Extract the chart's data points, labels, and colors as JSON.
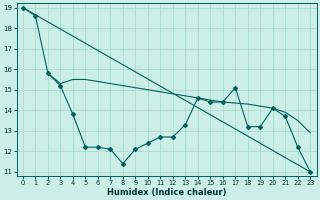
{
  "xlabel": "Humidex (Indice chaleur)",
  "background_color": "#cceee8",
  "grid_color": "#aaddcc",
  "line_color": "#006060",
  "xlim": [
    -0.5,
    23.5
  ],
  "ylim": [
    10.8,
    19.2
  ],
  "xticks": [
    0,
    1,
    2,
    3,
    4,
    5,
    6,
    7,
    8,
    9,
    10,
    11,
    12,
    13,
    14,
    15,
    16,
    17,
    18,
    19,
    20,
    21,
    22,
    23
  ],
  "yticks": [
    11,
    12,
    13,
    14,
    15,
    16,
    17,
    18,
    19
  ],
  "line1_x": [
    0,
    1,
    2,
    3,
    4,
    5,
    6,
    7,
    8,
    9,
    10,
    11,
    12,
    13,
    14,
    15,
    16,
    17,
    18,
    19,
    20,
    21,
    22,
    23
  ],
  "line1_y": [
    19.0,
    18.6,
    15.8,
    15.2,
    13.8,
    12.2,
    12.2,
    12.1,
    11.4,
    12.1,
    12.4,
    12.7,
    12.7,
    13.3,
    14.6,
    14.4,
    14.4,
    15.1,
    13.2,
    13.2,
    14.1,
    13.7,
    12.2,
    11.0
  ],
  "line2_x": [
    2,
    3,
    4,
    5,
    6,
    7,
    8,
    9,
    10,
    11,
    12,
    13,
    14,
    15,
    16,
    17,
    18,
    19,
    20,
    21,
    22,
    23
  ],
  "line2_y": [
    15.8,
    15.3,
    15.5,
    15.5,
    15.4,
    15.3,
    15.2,
    15.1,
    15.0,
    14.9,
    14.8,
    14.7,
    14.6,
    14.5,
    14.4,
    14.35,
    14.3,
    14.2,
    14.1,
    13.9,
    13.5,
    12.9
  ],
  "line3_x": [
    0,
    23
  ],
  "line3_y": [
    19.0,
    11.0
  ]
}
